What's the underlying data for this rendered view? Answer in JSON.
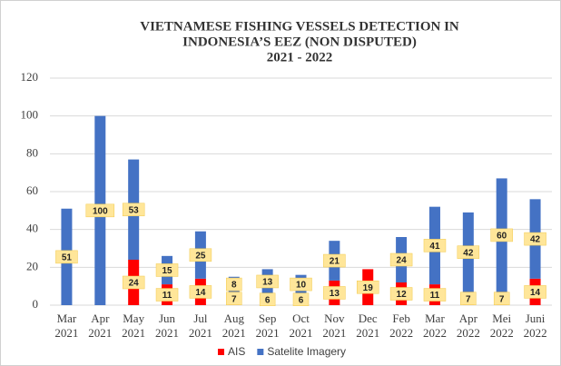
{
  "chart_data": {
    "type": "stacked_bar",
    "title": [
      "VIETNAMESE FISHING VESSELS DETECTION IN",
      "INDONESIA’S EEZ (NON DISPUTED)",
      "2021 - 2022"
    ],
    "categories": [
      "Mar 2021",
      "Apr 2021",
      "May 2021",
      "Jun 2021",
      "Jul 2021",
      "Aug 2021",
      "Sep 2021",
      "Oct 2021",
      "Nov 2021",
      "Dec 2021",
      "Feb 2022",
      "Mar 2022",
      "Apr 2022",
      "Mei 2022",
      "Juni 2022"
    ],
    "series": [
      {
        "name": "AIS",
        "color": "#ff0000",
        "values": [
          null,
          null,
          24,
          11,
          14,
          7,
          6,
          6,
          13,
          19,
          12,
          11,
          7,
          7,
          14
        ]
      },
      {
        "name": "Satelite Imagery",
        "color": "#4472c4",
        "values": [
          51,
          100,
          53,
          15,
          25,
          8,
          13,
          10,
          21,
          null,
          24,
          41,
          42,
          60,
          42
        ]
      }
    ],
    "ylim": [
      0,
      120
    ],
    "yticks": [
      0,
      20,
      40,
      60,
      80,
      100,
      120
    ],
    "grid": true,
    "legend": "bottom"
  }
}
